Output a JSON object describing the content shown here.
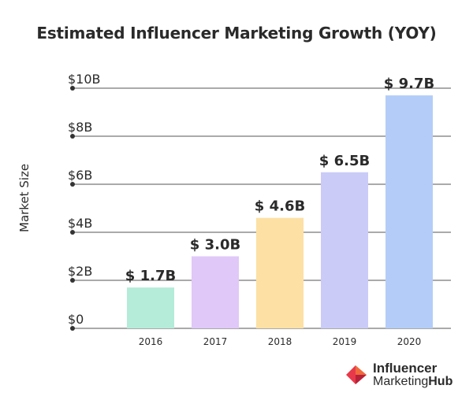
{
  "chart_data": {
    "type": "bar",
    "title": "Estimated Influencer Marketing Growth (YOY)",
    "ylabel": "Market Size",
    "xlabel": "",
    "categories": [
      "2016",
      "2017",
      "2018",
      "2019",
      "2020"
    ],
    "values": [
      1.7,
      3.0,
      4.6,
      6.5,
      9.7
    ],
    "value_labels": [
      "$ 1.7B",
      "$ 3.0B",
      "$ 4.6B",
      "$ 6.5B",
      "$ 9.7B"
    ],
    "bar_colors": [
      "#b4ecd9",
      "#e0c8f8",
      "#fde0a4",
      "#cbcbf8",
      "#b3cdf8"
    ],
    "ylim": [
      0,
      10
    ],
    "yticks": [
      0,
      2,
      4,
      6,
      8,
      10
    ],
    "ytick_labels": [
      "$0",
      "$2B",
      "$4B",
      "$6B",
      "$8B",
      "$10B"
    ],
    "grid": true,
    "legend": "none"
  },
  "brand": {
    "line1": "Influencer",
    "line2a": "Marketing",
    "line2b": "Hub",
    "colors": [
      "#e8394b",
      "#f06a3b",
      "#b8203a"
    ]
  }
}
